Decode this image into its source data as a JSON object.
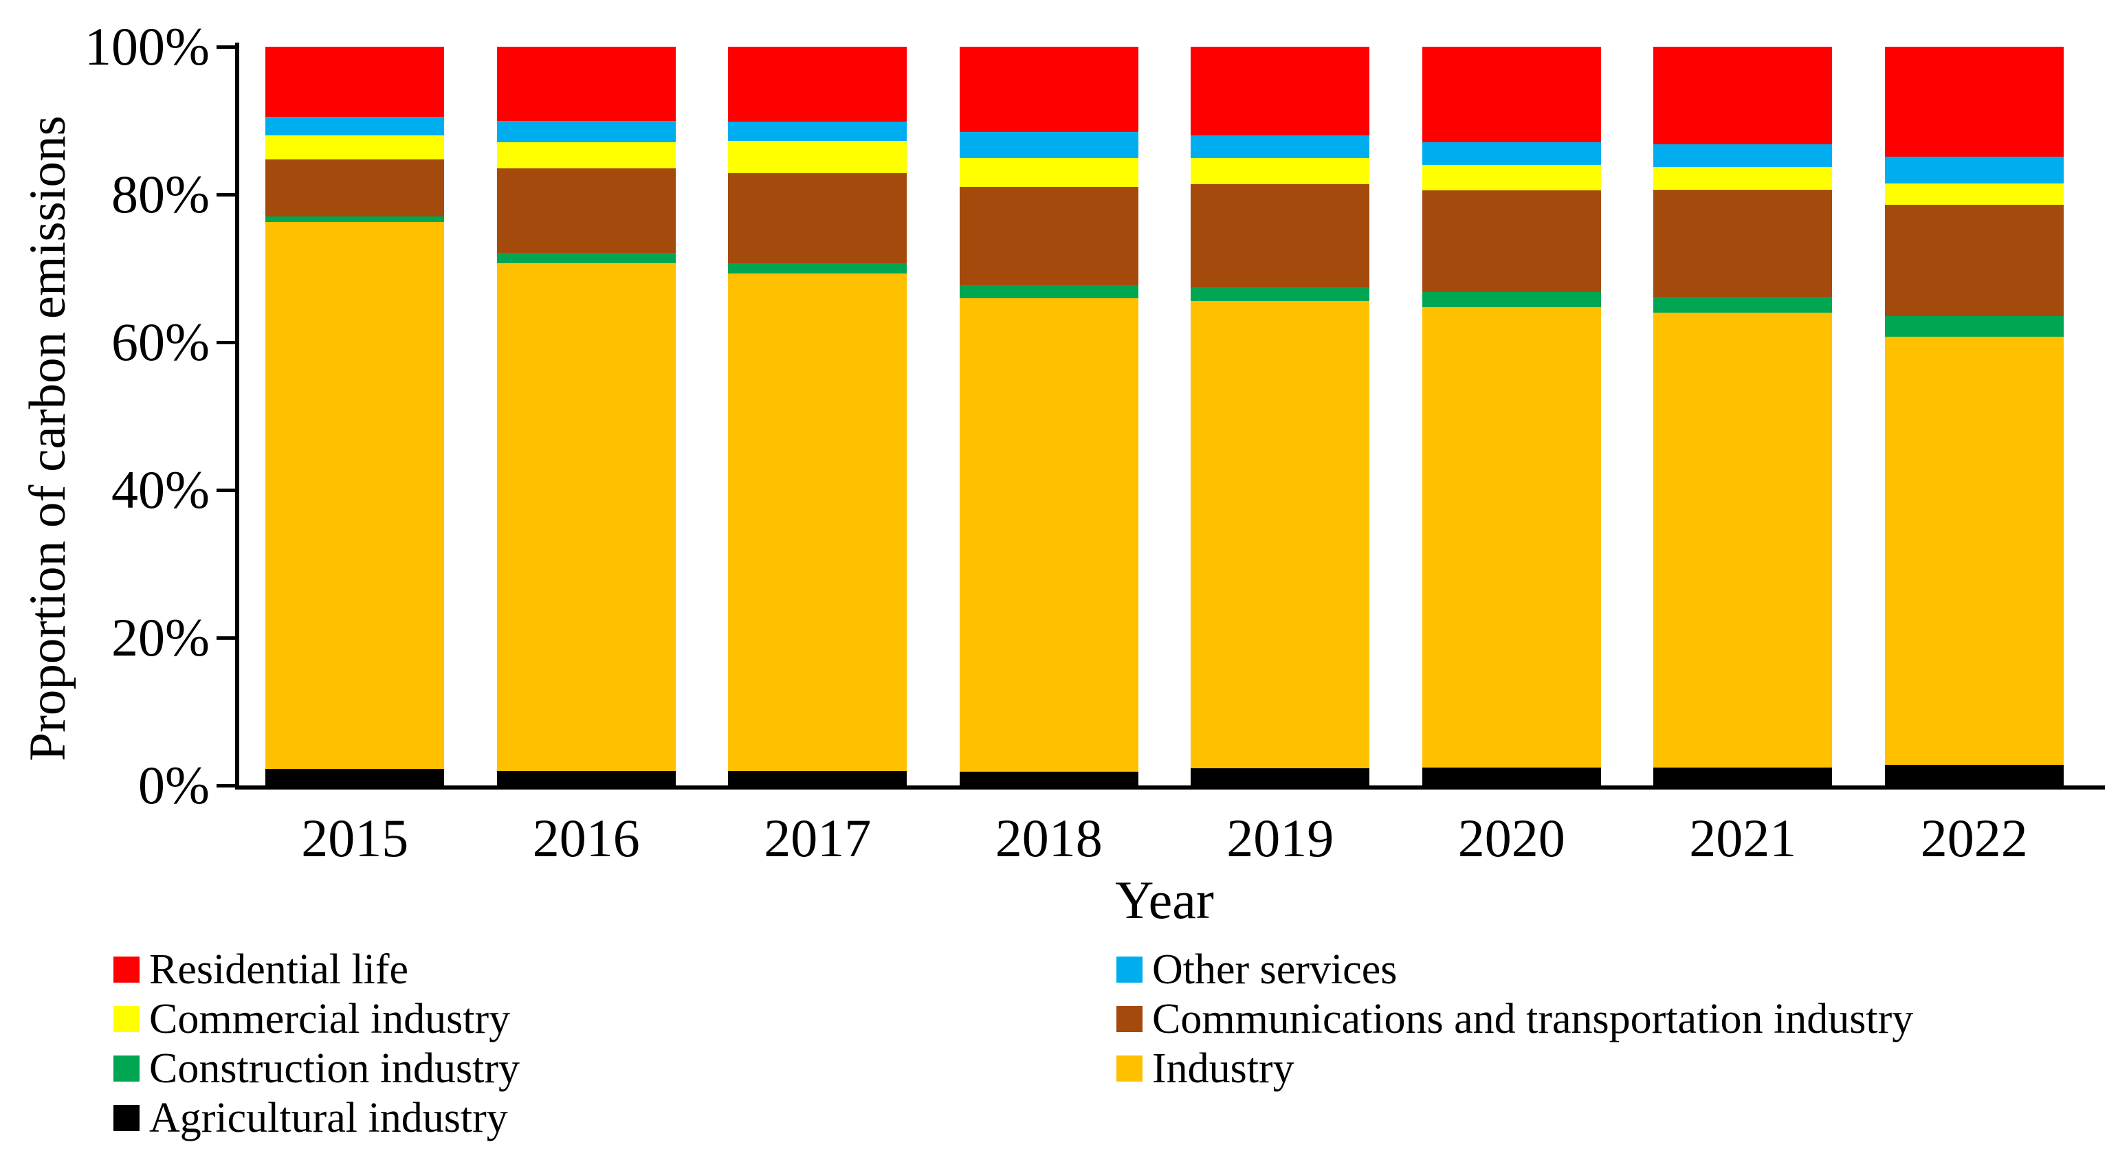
{
  "chart": {
    "y_axis_label": "Proportion of carbon emissions",
    "x_axis_label": "Year"
  },
  "chart_data": {
    "type": "bar",
    "stacked": true,
    "normalized_percent": true,
    "title": "",
    "xlabel": "Year",
    "ylabel": "Proportion of carbon emissions",
    "ylim": [
      0,
      100
    ],
    "y_ticks": [
      "100%",
      "80%",
      "60%",
      "40%",
      "20%",
      "0%"
    ],
    "grid": false,
    "legend_position": "bottom",
    "categories": [
      "2015",
      "2016",
      "2017",
      "2018",
      "2019",
      "2020",
      "2021",
      "2022"
    ],
    "series": [
      {
        "name": "Agricultural industry",
        "color": "#000000",
        "values": [
          2.2,
          2.0,
          2.0,
          1.9,
          2.3,
          2.4,
          2.4,
          2.8
        ]
      },
      {
        "name": "Industry",
        "color": "#FFC000",
        "values": [
          74.1,
          68.7,
          67.3,
          64.1,
          63.3,
          62.3,
          61.6,
          57.9
        ]
      },
      {
        "name": "Construction industry",
        "color": "#00A651",
        "values": [
          0.7,
          1.4,
          1.4,
          1.7,
          1.8,
          2.1,
          2.1,
          2.8
        ]
      },
      {
        "name": "Communications and transportation industry",
        "color": "#A44A0D",
        "values": [
          7.7,
          11.4,
          12.2,
          13.3,
          14.0,
          13.8,
          14.6,
          15.1
        ]
      },
      {
        "name": "Commercial industry",
        "color": "#FFFF00",
        "values": [
          3.3,
          3.6,
          4.4,
          3.9,
          3.5,
          3.4,
          3.0,
          2.9
        ]
      },
      {
        "name": "Other services",
        "color": "#00AEEF",
        "values": [
          2.5,
          2.9,
          2.6,
          3.6,
          3.1,
          3.1,
          3.1,
          3.6
        ]
      },
      {
        "name": "Residential life",
        "color": "#FF0000",
        "values": [
          9.5,
          10.0,
          10.1,
          11.5,
          12.0,
          12.9,
          13.2,
          14.9
        ]
      }
    ],
    "legend_columns": [
      [
        "Residential life",
        "Commercial industry",
        "Construction industry",
        "Agricultural industry"
      ],
      [
        "Other services",
        "Communications and transportation industry",
        "Industry"
      ]
    ]
  }
}
